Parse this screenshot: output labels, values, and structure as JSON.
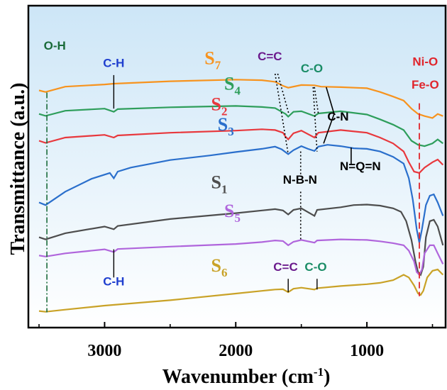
{
  "chart_data": {
    "type": "line",
    "xlabel": "Wavenumber (cm",
    "xlabel_sup": "-1",
    "xlabel_end": ")",
    "ylabel": "Transmittance (a.u.)",
    "xlim": [
      3500,
      400
    ],
    "x_reversed": true,
    "xticks": [
      3000,
      2000,
      1000
    ],
    "background": {
      "top": "#cde6f7",
      "bottom": "#ffffff"
    },
    "series": [
      {
        "name": "S",
        "sub": "7",
        "color": "#f7931e",
        "points": [
          [
            3500,
            0.848
          ],
          [
            3450,
            0.842
          ],
          [
            3300,
            0.862
          ],
          [
            3000,
            0.87
          ],
          [
            2930,
            0.873
          ],
          [
            2500,
            0.882
          ],
          [
            2000,
            0.888
          ],
          [
            1800,
            0.886
          ],
          [
            1700,
            0.88
          ],
          [
            1640,
            0.865
          ],
          [
            1600,
            0.858
          ],
          [
            1500,
            0.868
          ],
          [
            1400,
            0.867
          ],
          [
            1350,
            0.862
          ],
          [
            1200,
            0.86
          ],
          [
            1000,
            0.856
          ],
          [
            900,
            0.842
          ],
          [
            800,
            0.825
          ],
          [
            720,
            0.81
          ],
          [
            660,
            0.78
          ],
          [
            610,
            0.76
          ],
          [
            560,
            0.752
          ],
          [
            500,
            0.745
          ],
          [
            460,
            0.76
          ],
          [
            420,
            0.752
          ]
        ]
      },
      {
        "name": "S",
        "sub": "4",
        "color": "#2e9e5b",
        "points": [
          [
            3500,
            0.76
          ],
          [
            3450,
            0.753
          ],
          [
            3300,
            0.772
          ],
          [
            3000,
            0.78
          ],
          [
            2930,
            0.768
          ],
          [
            2900,
            0.778
          ],
          [
            2500,
            0.785
          ],
          [
            2000,
            0.79
          ],
          [
            1800,
            0.786
          ],
          [
            1700,
            0.782
          ],
          [
            1620,
            0.76
          ],
          [
            1600,
            0.75
          ],
          [
            1560,
            0.768
          ],
          [
            1500,
            0.77
          ],
          [
            1400,
            0.752
          ],
          [
            1370,
            0.762
          ],
          [
            1200,
            0.77
          ],
          [
            1000,
            0.758
          ],
          [
            900,
            0.74
          ],
          [
            800,
            0.72
          ],
          [
            720,
            0.7
          ],
          [
            660,
            0.66
          ],
          [
            610,
            0.645
          ],
          [
            560,
            0.64
          ],
          [
            500,
            0.65
          ],
          [
            460,
            0.665
          ],
          [
            420,
            0.65
          ]
        ]
      },
      {
        "name": "S",
        "sub": "2",
        "color": "#e8383d",
        "points": [
          [
            3500,
            0.66
          ],
          [
            3450,
            0.652
          ],
          [
            3300,
            0.672
          ],
          [
            3000,
            0.682
          ],
          [
            2930,
            0.672
          ],
          [
            2900,
            0.68
          ],
          [
            2500,
            0.69
          ],
          [
            2000,
            0.698
          ],
          [
            1800,
            0.703
          ],
          [
            1700,
            0.7
          ],
          [
            1640,
            0.69
          ],
          [
            1620,
            0.675
          ],
          [
            1600,
            0.665
          ],
          [
            1560,
            0.688
          ],
          [
            1500,
            0.698
          ],
          [
            1400,
            0.672
          ],
          [
            1370,
            0.69
          ],
          [
            1200,
            0.7
          ],
          [
            1000,
            0.69
          ],
          [
            900,
            0.672
          ],
          [
            800,
            0.65
          ],
          [
            720,
            0.62
          ],
          [
            680,
            0.58
          ],
          [
            640,
            0.545
          ],
          [
            600,
            0.54
          ],
          [
            560,
            0.56
          ],
          [
            500,
            0.58
          ],
          [
            460,
            0.59
          ],
          [
            420,
            0.57
          ]
        ]
      },
      {
        "name": "S",
        "sub": "3",
        "color": "#2a6fcc",
        "points": [
          [
            3500,
            0.43
          ],
          [
            3450,
            0.42
          ],
          [
            3300,
            0.47
          ],
          [
            3100,
            0.518
          ],
          [
            2960,
            0.54
          ],
          [
            2930,
            0.52
          ],
          [
            2900,
            0.545
          ],
          [
            2800,
            0.56
          ],
          [
            2500,
            0.588
          ],
          [
            2200,
            0.605
          ],
          [
            2000,
            0.618
          ],
          [
            1800,
            0.63
          ],
          [
            1700,
            0.638
          ],
          [
            1650,
            0.628
          ],
          [
            1600,
            0.61
          ],
          [
            1560,
            0.625
          ],
          [
            1500,
            0.64
          ],
          [
            1450,
            0.63
          ],
          [
            1400,
            0.622
          ],
          [
            1370,
            0.638
          ],
          [
            1300,
            0.645
          ],
          [
            1200,
            0.64
          ],
          [
            1100,
            0.632
          ],
          [
            1000,
            0.63
          ],
          [
            900,
            0.62
          ],
          [
            800,
            0.6
          ],
          [
            720,
            0.575
          ],
          [
            680,
            0.52
          ],
          [
            650,
            0.44
          ],
          [
            620,
            0.33
          ],
          [
            600,
            0.28
          ],
          [
            580,
            0.33
          ],
          [
            550,
            0.42
          ],
          [
            520,
            0.455
          ],
          [
            490,
            0.46
          ],
          [
            460,
            0.43
          ],
          [
            420,
            0.38
          ]
        ]
      },
      {
        "name": "S",
        "sub": "1",
        "color": "#4d4d4d",
        "points": [
          [
            3500,
            0.3
          ],
          [
            3450,
            0.292
          ],
          [
            3300,
            0.315
          ],
          [
            3000,
            0.34
          ],
          [
            2930,
            0.33
          ],
          [
            2900,
            0.342
          ],
          [
            2500,
            0.368
          ],
          [
            2000,
            0.39
          ],
          [
            1800,
            0.4
          ],
          [
            1700,
            0.405
          ],
          [
            1640,
            0.4
          ],
          [
            1600,
            0.385
          ],
          [
            1560,
            0.402
          ],
          [
            1500,
            0.408
          ],
          [
            1400,
            0.38
          ],
          [
            1380,
            0.402
          ],
          [
            1200,
            0.412
          ],
          [
            1100,
            0.42
          ],
          [
            1000,
            0.422
          ],
          [
            900,
            0.418
          ],
          [
            800,
            0.408
          ],
          [
            740,
            0.395
          ],
          [
            700,
            0.36
          ],
          [
            660,
            0.29
          ],
          [
            630,
            0.21
          ],
          [
            610,
            0.17
          ],
          [
            590,
            0.16
          ],
          [
            570,
            0.19
          ],
          [
            550,
            0.3
          ],
          [
            520,
            0.36
          ],
          [
            490,
            0.365
          ],
          [
            460,
            0.34
          ],
          [
            420,
            0.27
          ]
        ]
      },
      {
        "name": "S",
        "sub": "5",
        "color": "#b065dc",
        "points": [
          [
            3500,
            0.232
          ],
          [
            3450,
            0.228
          ],
          [
            3300,
            0.24
          ],
          [
            3000,
            0.255
          ],
          [
            2930,
            0.245
          ],
          [
            2900,
            0.256
          ],
          [
            2500,
            0.265
          ],
          [
            2000,
            0.275
          ],
          [
            1800,
            0.282
          ],
          [
            1700,
            0.288
          ],
          [
            1640,
            0.286
          ],
          [
            1600,
            0.27
          ],
          [
            1560,
            0.283
          ],
          [
            1500,
            0.29
          ],
          [
            1400,
            0.28
          ],
          [
            1380,
            0.288
          ],
          [
            1200,
            0.292
          ],
          [
            1000,
            0.29
          ],
          [
            900,
            0.285
          ],
          [
            800,
            0.278
          ],
          [
            720,
            0.27
          ],
          [
            680,
            0.25
          ],
          [
            640,
            0.21
          ],
          [
            620,
            0.17
          ],
          [
            600,
            0.16
          ],
          [
            580,
            0.18
          ],
          [
            560,
            0.24
          ],
          [
            520,
            0.27
          ],
          [
            490,
            0.27
          ],
          [
            460,
            0.24
          ],
          [
            420,
            0.2
          ]
        ]
      },
      {
        "name": "S",
        "sub": "6",
        "color": "#c9a227",
        "points": [
          [
            3500,
            0.025
          ],
          [
            3450,
            0.022
          ],
          [
            3300,
            0.03
          ],
          [
            3000,
            0.045
          ],
          [
            2500,
            0.065
          ],
          [
            2000,
            0.09
          ],
          [
            1800,
            0.1
          ],
          [
            1700,
            0.105
          ],
          [
            1640,
            0.106
          ],
          [
            1600,
            0.095
          ],
          [
            1560,
            0.108
          ],
          [
            1500,
            0.112
          ],
          [
            1400,
            0.105
          ],
          [
            1380,
            0.11
          ],
          [
            1200,
            0.118
          ],
          [
            1000,
            0.125
          ],
          [
            900,
            0.13
          ],
          [
            800,
            0.14
          ],
          [
            720,
            0.16
          ],
          [
            680,
            0.15
          ],
          [
            640,
            0.12
          ],
          [
            610,
            0.09
          ],
          [
            590,
            0.085
          ],
          [
            570,
            0.1
          ],
          [
            540,
            0.15
          ],
          [
            500,
            0.175
          ],
          [
            460,
            0.18
          ],
          [
            420,
            0.16
          ]
        ]
      }
    ],
    "annotations": [
      {
        "text": "O-H",
        "color": "#1a6b3a"
      },
      {
        "text": "C-H",
        "color": "#1f3fcf"
      },
      {
        "text": "C=C",
        "color": "#6b1a8c"
      },
      {
        "text": "C-O",
        "color": "#1a8c66"
      },
      {
        "text": "C-N",
        "color": "#000000"
      },
      {
        "text": "N=Q=N",
        "color": "#000000"
      },
      {
        "text": "N-B-N",
        "color": "#000000"
      },
      {
        "text": "Ni-O",
        "color": "#e0252c"
      },
      {
        "text": "Fe-O",
        "color": "#e0252c"
      },
      {
        "text": "C-H",
        "color": "#1f3fcf"
      },
      {
        "text": "C=C",
        "color": "#6b1a8c"
      },
      {
        "text": "C-O",
        "color": "#1a8c66"
      }
    ]
  }
}
